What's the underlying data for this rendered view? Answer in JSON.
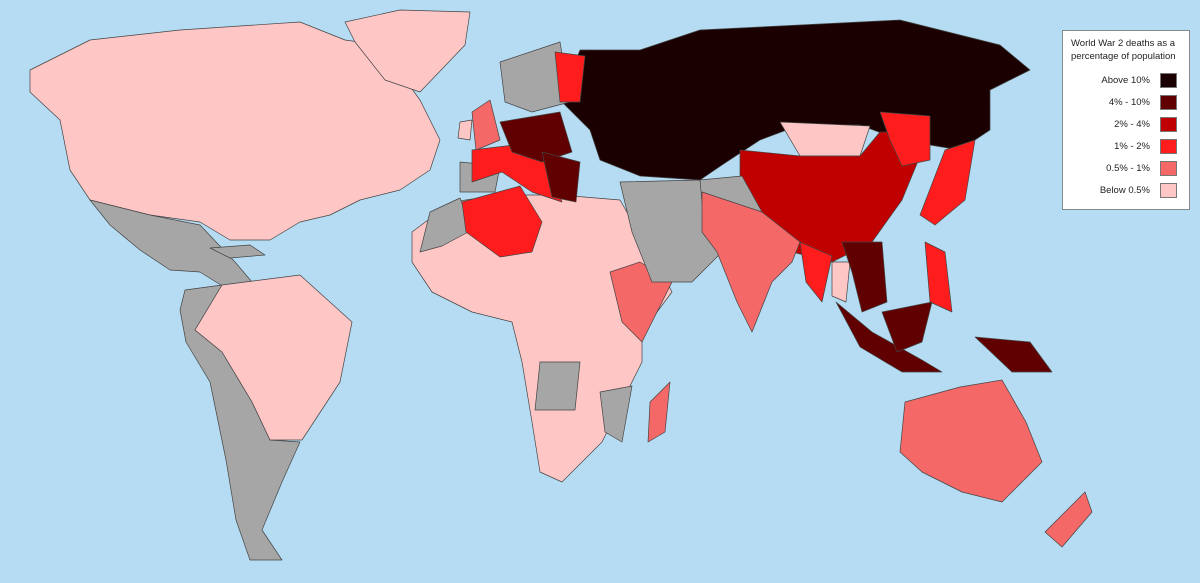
{
  "legend": {
    "title": "World War 2 deaths as a percentage of population",
    "items": [
      {
        "key": "above10",
        "label": "Above 10%",
        "color": "#1a0000"
      },
      {
        "key": "p4to10",
        "label": "4% - 10%",
        "color": "#600000"
      },
      {
        "key": "p2to4",
        "label": "2% - 4%",
        "color": "#c00000"
      },
      {
        "key": "p1to2",
        "label": "1% - 2%",
        "color": "#ff1c1c"
      },
      {
        "key": "p05to1",
        "label": "0.5% - 1%",
        "color": "#f56868"
      },
      {
        "key": "below05",
        "label": "Below 0.5%",
        "color": "#ffc6c6"
      }
    ]
  },
  "colors": {
    "ocean": "#b5dcf2",
    "no_data": "#a6a6a6"
  }
}
